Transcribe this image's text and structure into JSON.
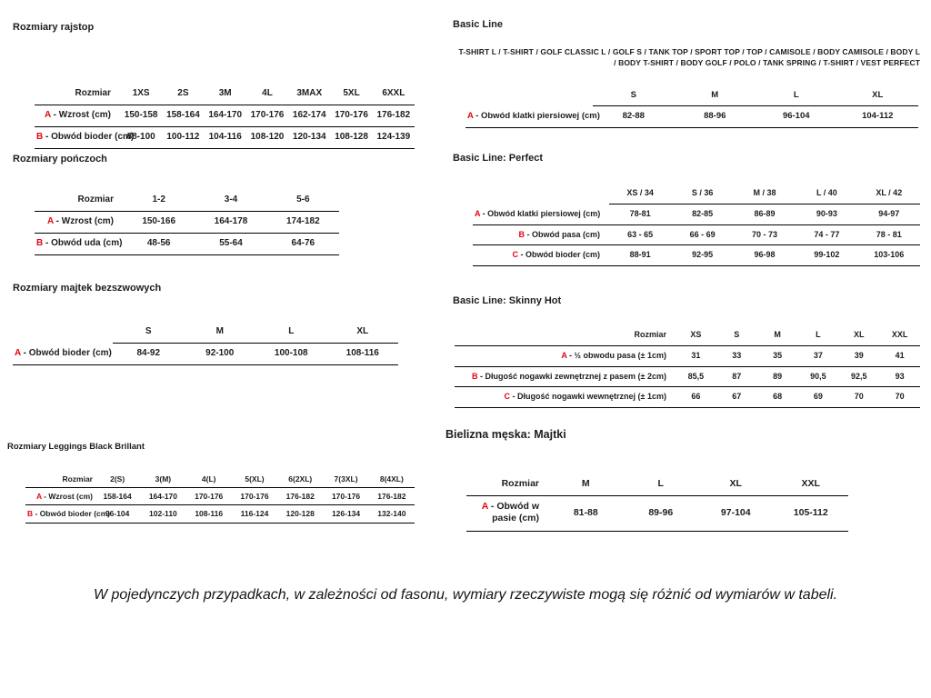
{
  "colors": {
    "accent": "#e30613",
    "text": "#1d1d1b",
    "line": "#000000",
    "background": "#ffffff"
  },
  "tables": {
    "rajstop": {
      "title": "Rozmiary rajstop",
      "label_header": "Rozmiar",
      "columns": [
        "1XS",
        "2S",
        "3M",
        "4L",
        "3MAX",
        "5XL",
        "6XXL"
      ],
      "rows": [
        {
          "letter": "A",
          "label": "Wzrost (cm)",
          "values": [
            "150-158",
            "158-164",
            "164-170",
            "170-176",
            "162-174",
            "170-176",
            "176-182"
          ]
        },
        {
          "letter": "B",
          "label": "Obwód bioder (cm)",
          "values": [
            "88-100",
            "100-112",
            "104-116",
            "108-120",
            "120-134",
            "108-128",
            "124-139"
          ]
        }
      ]
    },
    "ponczochy": {
      "title": "Rozmiary pończoch",
      "label_header": "Rozmiar",
      "columns": [
        "1-2",
        "3-4",
        "5-6"
      ],
      "rows": [
        {
          "letter": "A",
          "label": "Wzrost (cm)",
          "values": [
            "150-166",
            "164-178",
            "174-182"
          ]
        },
        {
          "letter": "B",
          "label": "Obwód uda (cm)",
          "values": [
            "48-56",
            "55-64",
            "64-76"
          ]
        }
      ]
    },
    "majtki_bezszwowe": {
      "title": "Rozmiary majtek bezszwowych",
      "label_header": "",
      "columns": [
        "S",
        "M",
        "L",
        "XL"
      ],
      "rows": [
        {
          "letter": "A",
          "label": "Obwód bioder (cm)",
          "values": [
            "84-92",
            "92-100",
            "100-108",
            "108-116"
          ]
        }
      ]
    },
    "leggings": {
      "title": "Rozmiary Leggings Black Brillant",
      "label_header": "Rozmiar",
      "columns": [
        "2(S)",
        "3(M)",
        "4(L)",
        "5(XL)",
        "6(2XL)",
        "7(3XL)",
        "8(4XL)"
      ],
      "rows": [
        {
          "letter": "A",
          "label": "Wzrost (cm)",
          "values": [
            "158-164",
            "164-170",
            "170-176",
            "170-176",
            "176-182",
            "170-176",
            "176-182"
          ]
        },
        {
          "letter": "B",
          "label": "Obwód bioder (cm)",
          "values": [
            "96-104",
            "102-110",
            "108-116",
            "116-124",
            "120-128",
            "126-134",
            "132-140"
          ]
        }
      ]
    },
    "basic_line": {
      "title": "Basic Line",
      "subtitle": "T-SHIRT L / T-SHIRT / GOLF CLASSIC L / GOLF S / TANK TOP / SPORT TOP / TOP / CAMISOLE / BODY CAMISOLE / BODY L / BODY T-SHIRT / BODY GOLF / POLO / TANK SPRING / T-SHIRT / VEST PERFECT",
      "label_header": "",
      "columns": [
        "S",
        "M",
        "L",
        "XL"
      ],
      "rows": [
        {
          "letter": "A",
          "label": "Obwód klatki piersiowej (cm)",
          "values": [
            "82-88",
            "88-96",
            "96-104",
            "104-112"
          ]
        }
      ]
    },
    "basic_line_perfect": {
      "title": "Basic Line: Perfect",
      "label_header": "",
      "columns": [
        "XS / 34",
        "S / 36",
        "M / 38",
        "L / 40",
        "XL / 42"
      ],
      "rows": [
        {
          "letter": "A",
          "label": "Obwód klatki piersiowej (cm)",
          "values": [
            "78-81",
            "82-85",
            "86-89",
            "90-93",
            "94-97"
          ]
        },
        {
          "letter": "B",
          "label": "Obwód pasa (cm)",
          "values": [
            "63 - 65",
            "66 - 69",
            "70 - 73",
            "74 - 77",
            "78 - 81"
          ]
        },
        {
          "letter": "C",
          "label": "Obwód bioder (cm)",
          "values": [
            "88-91",
            "92-95",
            "96-98",
            "99-102",
            "103-106"
          ]
        }
      ]
    },
    "skinny_hot": {
      "title": "Basic Line: Skinny Hot",
      "label_header": "Rozmiar",
      "columns": [
        "XS",
        "S",
        "M",
        "L",
        "XL",
        "XXL"
      ],
      "rows": [
        {
          "letter": "A",
          "label": "½ obwodu pasa (± 1cm)",
          "values": [
            "31",
            "33",
            "35",
            "37",
            "39",
            "41"
          ]
        },
        {
          "letter": "B",
          "label": "Długość nogawki zewnętrznej z pasem (± 2cm)",
          "values": [
            "85,5",
            "87",
            "89",
            "90,5",
            "92,5",
            "93"
          ]
        },
        {
          "letter": "C",
          "label": "Długość nogawki wewnętrznej (± 1cm)",
          "values": [
            "66",
            "67",
            "68",
            "69",
            "70",
            "70"
          ]
        }
      ]
    },
    "bielizna_meska": {
      "title": "Bielizna męska: Majtki",
      "label_header": "Rozmiar",
      "columns": [
        "M",
        "L",
        "XL",
        "XXL"
      ],
      "rows": [
        {
          "letter": "A",
          "label": "Obwód w pasie (cm)",
          "values": [
            "81-88",
            "89-96",
            "97-104",
            "105-112"
          ]
        }
      ]
    }
  },
  "footer_note": "W pojedynczych przypadkach, w zależności od fasonu, wymiary rzeczywiste mogą się różnić od wymiarów w tabeli."
}
